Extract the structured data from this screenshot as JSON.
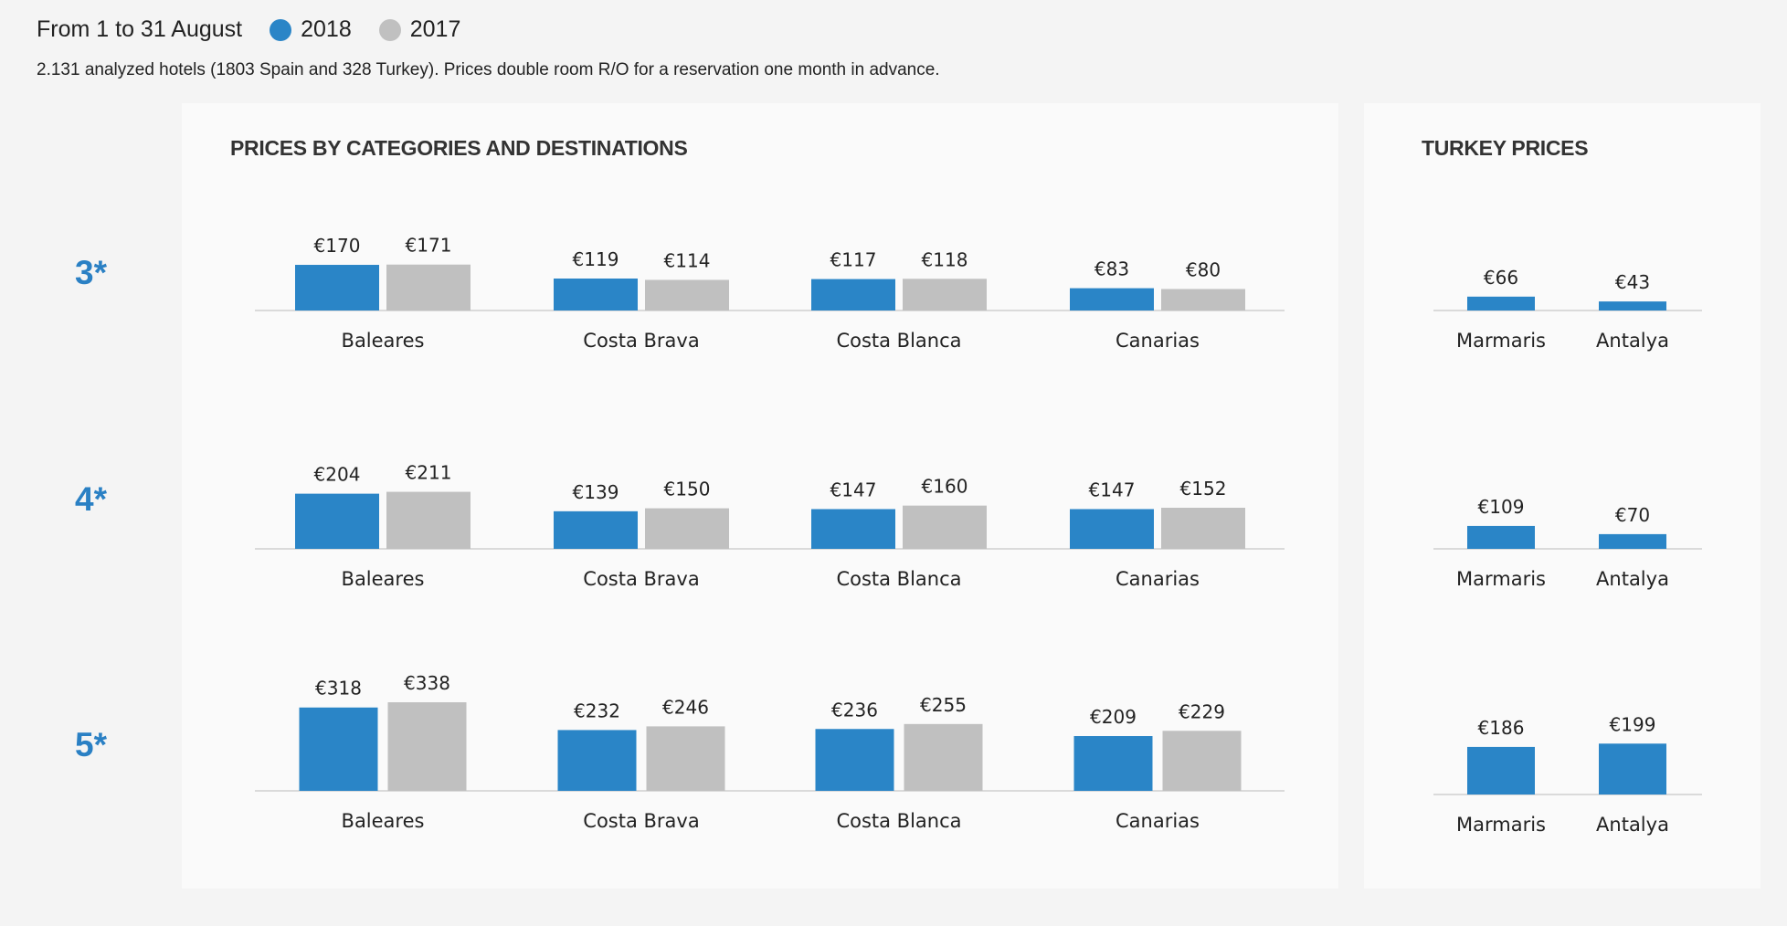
{
  "header": {
    "period": "From 1 to 31 August",
    "subtitle": "2.131 analyzed hotels (1803 Spain and  328 Turkey). Prices double room R/O for a reservation one month in advance."
  },
  "legend": [
    {
      "label": "2018",
      "color": "#2a85c7"
    },
    {
      "label": "2017",
      "color": "#c0c0c0"
    }
  ],
  "colors": {
    "y2018": "#2a85c7",
    "y2017": "#c0c0c0",
    "category": "#2a80c4"
  },
  "chart_data": [
    {
      "type": "bar",
      "title": "PRICES BY CATEGORIES AND DESTINATIONS",
      "categories": [
        "Baleares",
        "Costa Brava",
        "Costa Blanca",
        "Canarias"
      ],
      "groups": [
        {
          "label": "3*",
          "series": [
            {
              "name": "2018",
              "values": [
                170,
                119,
                117,
                83
              ],
              "labels": [
                "€170",
                "€119",
                "€117",
                "€83"
              ]
            },
            {
              "name": "2017",
              "values": [
                171,
                114,
                118,
                80
              ],
              "labels": [
                "€171",
                "€114",
                "€118",
                "€80"
              ]
            }
          ]
        },
        {
          "label": "4*",
          "series": [
            {
              "name": "2018",
              "values": [
                204,
                139,
                147,
                147
              ],
              "labels": [
                "€204",
                "€139",
                "€147",
                "€147"
              ]
            },
            {
              "name": "2017",
              "values": [
                211,
                150,
                160,
                152
              ],
              "labels": [
                "€211",
                "€150",
                "€160",
                "€152"
              ]
            }
          ]
        },
        {
          "label": "5*",
          "series": [
            {
              "name": "2018",
              "values": [
                318,
                232,
                236,
                209
              ],
              "labels": [
                "€318",
                "€232",
                "€236",
                "€209"
              ]
            },
            {
              "name": "2017",
              "values": [
                338,
                246,
                255,
                229
              ],
              "labels": [
                "€338",
                "€246",
                "€255",
                "€229"
              ]
            }
          ]
        }
      ]
    },
    {
      "type": "bar",
      "title": "TURKEY PRICES",
      "categories": [
        "Marmaris",
        "Antalya"
      ],
      "groups": [
        {
          "label": "3*",
          "series": [
            {
              "name": "2018",
              "values": [
                66,
                43
              ],
              "labels": [
                "€66",
                "€43"
              ]
            }
          ]
        },
        {
          "label": "4*",
          "series": [
            {
              "name": "2018",
              "values": [
                109,
                70
              ],
              "labels": [
                "€109",
                "€70"
              ]
            }
          ]
        },
        {
          "label": "5*",
          "series": [
            {
              "name": "2018",
              "values": [
                186,
                199
              ],
              "labels": [
                "€186",
                "€199"
              ]
            }
          ]
        }
      ]
    }
  ]
}
